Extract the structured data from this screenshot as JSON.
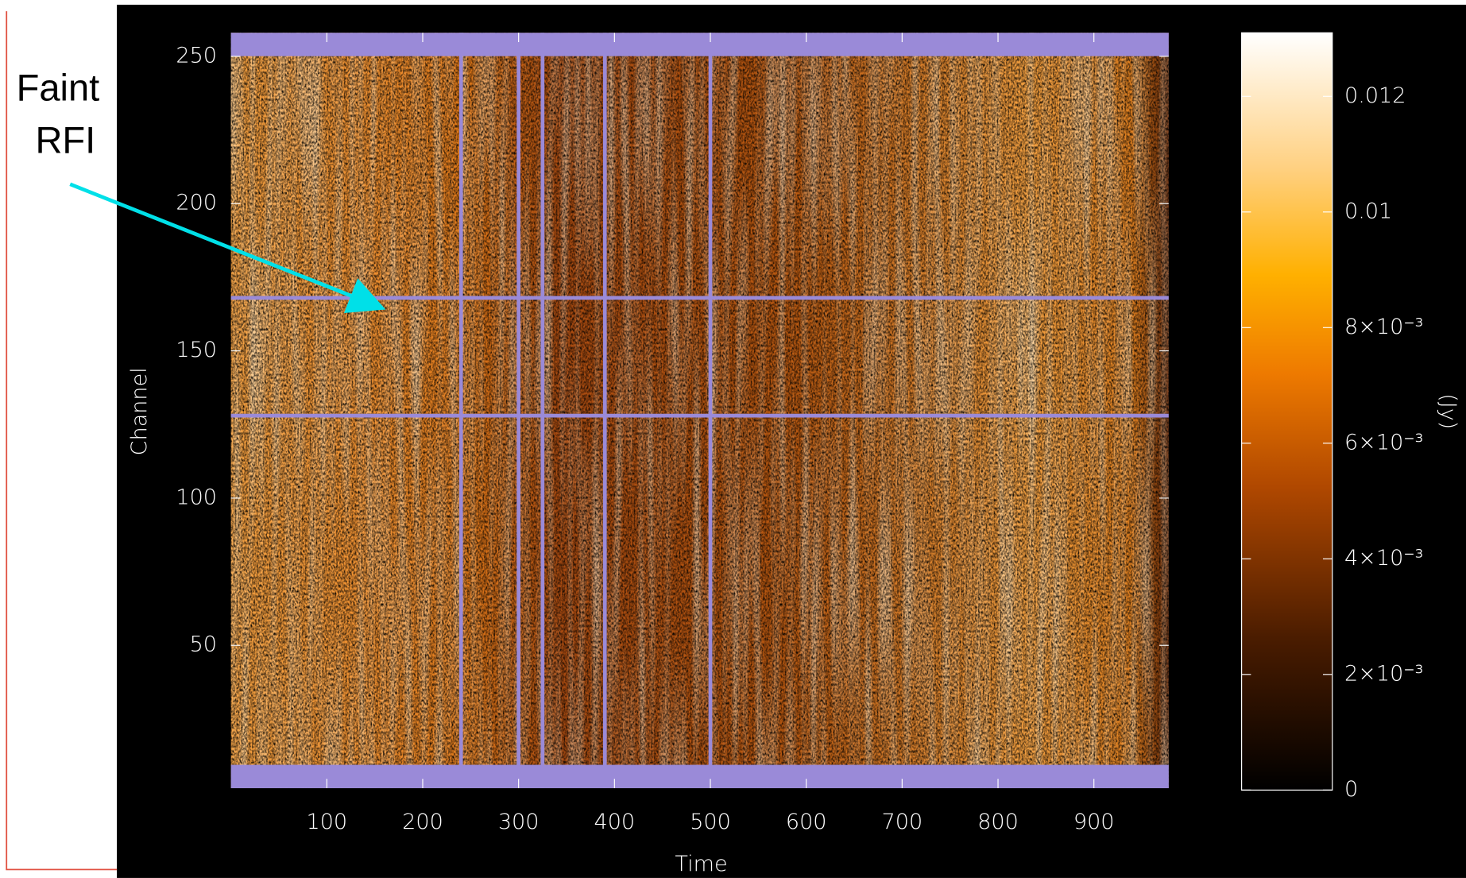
{
  "chart_data": {
    "type": "heatmap",
    "xlabel": "Time",
    "ylabel": "Channel",
    "xlim": [
      0,
      978
    ],
    "xticks": [
      100,
      200,
      300,
      400,
      500,
      600,
      700,
      800,
      900
    ],
    "ylim": [
      1.5,
      258
    ],
    "yticks": [
      50,
      100,
      150,
      200,
      250
    ],
    "colorbar": {
      "label": "(Jy)",
      "clim": [
        0,
        0.0131
      ],
      "ticks": [
        0,
        {
          "value": 0.002,
          "label": "2×10⁻³"
        },
        {
          "value": 0.004,
          "label": "4×10⁻³"
        },
        {
          "value": 0.006,
          "label": "6×10⁻³"
        },
        {
          "value": 0.008,
          "label": "8×10⁻³"
        },
        0.01,
        0.012
      ]
    },
    "flagged_channels": [
      128,
      168
    ],
    "flagged_times": [
      240,
      300,
      325,
      390,
      500
    ],
    "flag_color": "#9a8ad8",
    "annotation": [
      "Faint",
      "RFI"
    ]
  }
}
